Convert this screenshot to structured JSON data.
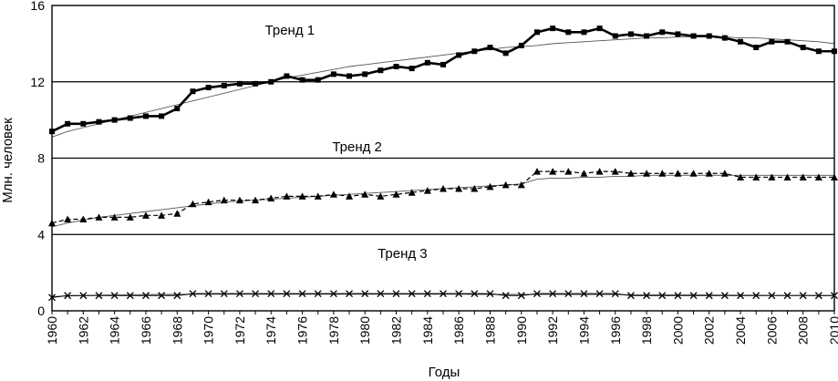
{
  "chart_data": {
    "type": "line",
    "title": "",
    "xlabel": "Годы",
    "ylabel": "Млн. человек",
    "xlim": [
      1960,
      2010
    ],
    "ylim": [
      0,
      16
    ],
    "y_ticks": [
      0,
      4,
      8,
      12,
      16
    ],
    "x_ticks": [
      1960,
      1962,
      1964,
      1966,
      1968,
      1970,
      1972,
      1974,
      1976,
      1978,
      1980,
      1982,
      1984,
      1986,
      1988,
      1990,
      1992,
      1994,
      1996,
      1998,
      2000,
      2002,
      2004,
      2006,
      2008,
      2010
    ],
    "grid": "horizontal",
    "legend": "none",
    "x": [
      1960,
      1961,
      1962,
      1963,
      1964,
      1965,
      1966,
      1967,
      1968,
      1969,
      1970,
      1971,
      1972,
      1973,
      1974,
      1975,
      1976,
      1977,
      1978,
      1979,
      1980,
      1981,
      1982,
      1983,
      1984,
      1985,
      1986,
      1987,
      1988,
      1989,
      1990,
      1991,
      1992,
      1993,
      1994,
      1995,
      1996,
      1997,
      1998,
      1999,
      2000,
      2001,
      2002,
      2003,
      2004,
      2005,
      2006,
      2007,
      2008,
      2009,
      2010
    ],
    "series": [
      {
        "marker": "square",
        "color": "#000000",
        "values": [
          9.4,
          9.8,
          9.8,
          9.9,
          10.0,
          10.1,
          10.2,
          10.2,
          10.6,
          11.5,
          11.7,
          11.8,
          11.9,
          11.9,
          12.0,
          12.3,
          12.1,
          12.1,
          12.4,
          12.3,
          12.4,
          12.6,
          12.8,
          12.7,
          13.0,
          12.9,
          13.4,
          13.6,
          13.8,
          13.5,
          13.9,
          14.6,
          14.8,
          14.6,
          14.6,
          14.8,
          14.4,
          14.5,
          14.4,
          14.6,
          14.5,
          14.4,
          14.4,
          14.3,
          14.1,
          13.8,
          14.1,
          14.1,
          13.8,
          13.6,
          13.6
        ],
        "trend": [
          9.1,
          9.4,
          9.6,
          9.8,
          10.0,
          10.2,
          10.4,
          10.6,
          10.8,
          11.0,
          11.2,
          11.4,
          11.6,
          11.8,
          12.0,
          12.2,
          12.35,
          12.5,
          12.65,
          12.8,
          12.9,
          13.0,
          13.1,
          13.2,
          13.3,
          13.4,
          13.5,
          13.6,
          13.7,
          13.8,
          13.85,
          13.9,
          14.0,
          14.05,
          14.1,
          14.15,
          14.2,
          14.25,
          14.3,
          14.3,
          14.35,
          14.35,
          14.35,
          14.35,
          14.3,
          14.3,
          14.25,
          14.2,
          14.15,
          14.1,
          14.0
        ]
      },
      {
        "marker": "triangle",
        "color": "#000000",
        "values": [
          4.6,
          4.8,
          4.8,
          4.9,
          4.9,
          4.9,
          5.0,
          5.0,
          5.1,
          5.6,
          5.7,
          5.8,
          5.8,
          5.8,
          5.9,
          6.0,
          6.0,
          6.0,
          6.1,
          6.0,
          6.1,
          6.0,
          6.1,
          6.2,
          6.3,
          6.4,
          6.4,
          6.4,
          6.5,
          6.6,
          6.6,
          7.3,
          7.3,
          7.3,
          7.2,
          7.3,
          7.3,
          7.2,
          7.2,
          7.2,
          7.2,
          7.2,
          7.2,
          7.2,
          7.0,
          7.0,
          7.0,
          7.0,
          7.0,
          7.0,
          7.0
        ],
        "trend": [
          4.4,
          4.6,
          4.75,
          4.9,
          5.0,
          5.1,
          5.2,
          5.3,
          5.4,
          5.5,
          5.6,
          5.7,
          5.75,
          5.8,
          5.85,
          5.9,
          5.95,
          6.0,
          6.05,
          6.1,
          6.15,
          6.2,
          6.25,
          6.3,
          6.35,
          6.4,
          6.45,
          6.5,
          6.55,
          6.6,
          6.65,
          6.9,
          6.95,
          6.95,
          7.0,
          7.0,
          7.05,
          7.05,
          7.1,
          7.1,
          7.1,
          7.1,
          7.1,
          7.1,
          7.1,
          7.1,
          7.1,
          7.1,
          7.1,
          7.1,
          7.1
        ]
      },
      {
        "marker": "x",
        "color": "#000000",
        "values": [
          0.7,
          0.8,
          0.8,
          0.8,
          0.8,
          0.8,
          0.8,
          0.8,
          0.8,
          0.9,
          0.9,
          0.9,
          0.9,
          0.9,
          0.9,
          0.9,
          0.9,
          0.9,
          0.9,
          0.9,
          0.9,
          0.9,
          0.9,
          0.9,
          0.9,
          0.9,
          0.9,
          0.9,
          0.9,
          0.8,
          0.8,
          0.9,
          0.9,
          0.9,
          0.9,
          0.9,
          0.9,
          0.8,
          0.8,
          0.8,
          0.8,
          0.8,
          0.8,
          0.8,
          0.8,
          0.8,
          0.8,
          0.8,
          0.8,
          0.8,
          0.8
        ],
        "trend": [
          0.75,
          0.78,
          0.8,
          0.82,
          0.83,
          0.84,
          0.85,
          0.86,
          0.86,
          0.87,
          0.87,
          0.87,
          0.87,
          0.87,
          0.87,
          0.87,
          0.87,
          0.87,
          0.87,
          0.87,
          0.87,
          0.87,
          0.87,
          0.87,
          0.87,
          0.87,
          0.87,
          0.86,
          0.86,
          0.86,
          0.86,
          0.86,
          0.86,
          0.85,
          0.85,
          0.85,
          0.85,
          0.84,
          0.84,
          0.84,
          0.83,
          0.83,
          0.83,
          0.82,
          0.82,
          0.82,
          0.81,
          0.81,
          0.81,
          0.8,
          0.8
        ]
      }
    ],
    "annotations": [
      {
        "text": "Тренд 1",
        "x": 1975.2,
        "y": 14.7
      },
      {
        "text": "Тренд 2",
        "x": 1979.5,
        "y": 8.6
      },
      {
        "text": "Тренд 3",
        "x": 1982.4,
        "y": 3.0
      }
    ]
  }
}
